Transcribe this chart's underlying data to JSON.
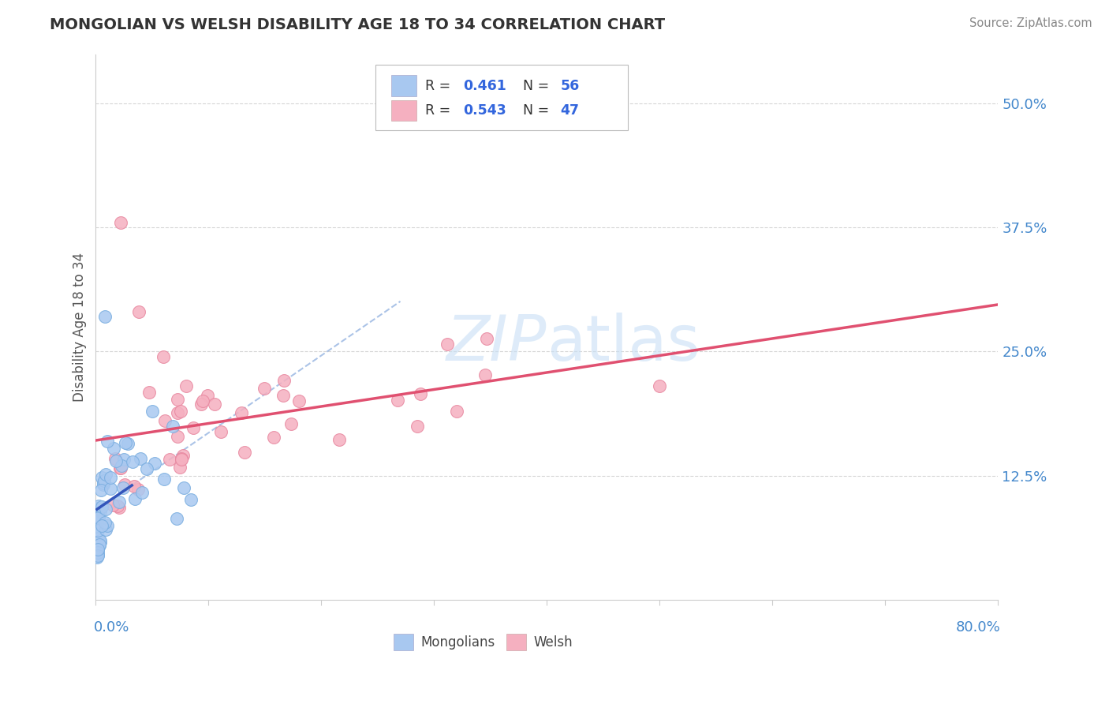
{
  "title": "MONGOLIAN VS WELSH DISABILITY AGE 18 TO 34 CORRELATION CHART",
  "source": "Source: ZipAtlas.com",
  "ylabel": "Disability Age 18 to 34",
  "xlim": [
    0.0,
    0.8
  ],
  "ylim": [
    0.0,
    0.55
  ],
  "ytick_vals": [
    0.125,
    0.25,
    0.375,
    0.5
  ],
  "ytick_labels": [
    "12.5%",
    "25.0%",
    "37.5%",
    "50.0%"
  ],
  "mongolian_color": "#a8c8f0",
  "mongolian_edge_color": "#7aaee0",
  "mongolian_line_color": "#3355bb",
  "welsh_color": "#f5b0c0",
  "welsh_edge_color": "#e888a0",
  "welsh_line_color": "#e05070",
  "dash_color": "#88aadd",
  "background_color": "#ffffff",
  "grid_color": "#cccccc",
  "title_color": "#333333",
  "source_color": "#888888",
  "tick_color": "#4488cc",
  "ylabel_color": "#555555",
  "legend_text_dark": "#333333",
  "legend_text_blue": "#3366dd",
  "watermark_color": "#c8dff5",
  "R_mongolian": 0.461,
  "N_mongolian": 56,
  "R_welsh": 0.543,
  "N_welsh": 47
}
